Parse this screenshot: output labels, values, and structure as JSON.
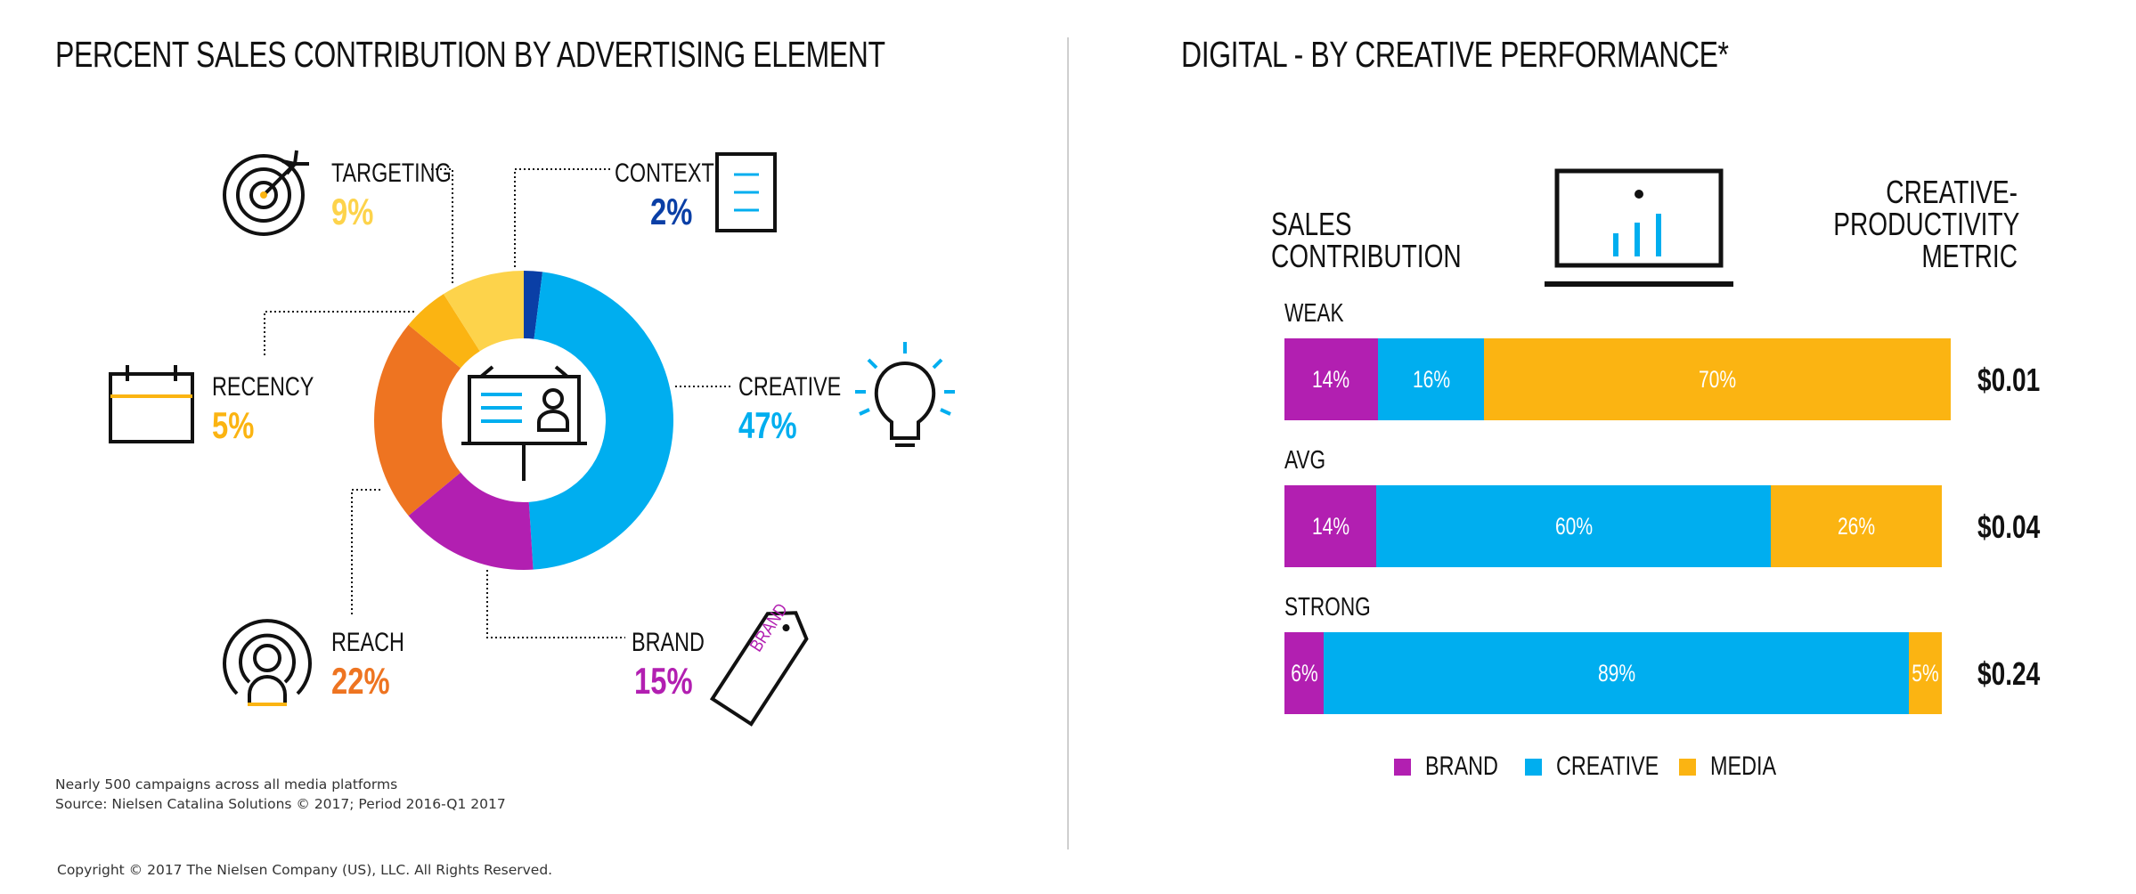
{
  "left": {
    "title": "PERCENT SALES CONTRIBUTION BY ADVERTISING ELEMENT",
    "note_line1": "Nearly 500 campaigns across all media platforms",
    "note_line2": "Source: Nielsen Catalina Solutions © 2017; Period 2016-Q1 2017",
    "copyright": "Copyright © 2017 The Nielsen Company (US), LLC. All Rights Reserved."
  },
  "right": {
    "title": "DIGITAL - BY CREATIVE PERFORMANCE*",
    "left_header_line1": "SALES",
    "left_header_line2": "CONTRIBUTION",
    "right_header_line1": "CREATIVE-",
    "right_header_line2": "PRODUCTIVITY",
    "right_header_line3": "METRIC"
  },
  "chart_data": [
    {
      "type": "pie",
      "title": "PERCENT SALES CONTRIBUTION BY ADVERTISING ELEMENT",
      "slices": [
        {
          "label": "CONTEXT",
          "value": 2,
          "display": "2%",
          "color": "#0a3fa6"
        },
        {
          "label": "CREATIVE",
          "value": 47,
          "display": "47%",
          "color": "#00aeef"
        },
        {
          "label": "BRAND",
          "value": 15,
          "display": "15%",
          "color": "#b21fb1"
        },
        {
          "label": "REACH",
          "value": 22,
          "display": "22%",
          "color": "#ee7421"
        },
        {
          "label": "RECENCY",
          "value": 5,
          "display": "5%",
          "color": "#fbb412"
        },
        {
          "label": "TARGETING",
          "value": 9,
          "display": "9%",
          "color": "#fdd34b"
        }
      ],
      "icons": [
        "target-icon",
        "document-icon",
        "lightbulb-icon",
        "brand-tag-icon",
        "reach-person-icon",
        "calendar-icon",
        "billboard-icon"
      ]
    },
    {
      "type": "bar",
      "stacked": true,
      "orientation": "horizontal",
      "title": "DIGITAL - BY CREATIVE PERFORMANCE*",
      "categories": [
        "WEAK",
        "AVG",
        "STRONG"
      ],
      "series": [
        {
          "name": "BRAND",
          "color": "#b21fb1",
          "values": [
            14,
            14,
            6
          ],
          "labels": [
            "14%",
            "14%",
            "6%"
          ]
        },
        {
          "name": "CREATIVE",
          "color": "#00aeef",
          "values": [
            16,
            60,
            89
          ],
          "labels": [
            "16%",
            "60%",
            "89%"
          ]
        },
        {
          "name": "MEDIA",
          "color": "#fbb412",
          "values": [
            70,
            26,
            5
          ],
          "labels": [
            "70%",
            "26%",
            "5%"
          ]
        }
      ],
      "metric": [
        "$0.01",
        "$0.04",
        "$0.24"
      ],
      "icons": [
        "laptop-chart-icon"
      ]
    }
  ]
}
